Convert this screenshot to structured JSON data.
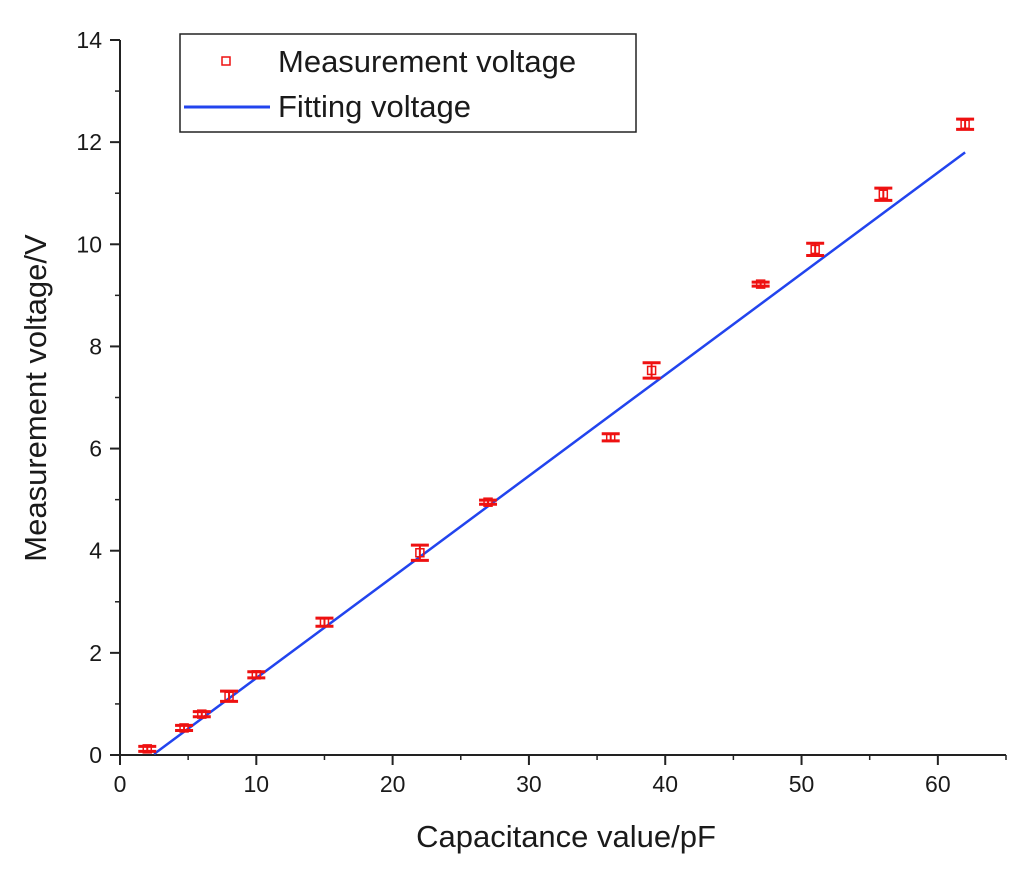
{
  "chart_data": {
    "type": "scatter",
    "title": "",
    "xlabel": "Capacitance value/pF",
    "ylabel": "Measurement voltage/V",
    "xlim": [
      0,
      65
    ],
    "ylim": [
      0,
      14
    ],
    "xticks": [
      0,
      10,
      20,
      30,
      40,
      50,
      60
    ],
    "yticks": [
      0,
      2,
      4,
      6,
      8,
      10,
      12,
      14
    ],
    "xminor_step": 5,
    "yminor_step": 1,
    "grid": false,
    "legend_position": "top-left",
    "series": [
      {
        "name": "Measurement voltage",
        "kind": "scatter-errorbar",
        "color": "#ee1111",
        "marker": "open-square",
        "points": [
          {
            "x": 2,
            "y": 0.12,
            "err": 0.05
          },
          {
            "x": 4.7,
            "y": 0.53,
            "err": 0.05
          },
          {
            "x": 6,
            "y": 0.8,
            "err": 0.05
          },
          {
            "x": 8,
            "y": 1.15,
            "err": 0.1
          },
          {
            "x": 10,
            "y": 1.57,
            "err": 0.06
          },
          {
            "x": 15,
            "y": 2.6,
            "err": 0.08
          },
          {
            "x": 22,
            "y": 3.96,
            "err": 0.15
          },
          {
            "x": 27,
            "y": 4.95,
            "err": 0.04
          },
          {
            "x": 36,
            "y": 6.22,
            "err": 0.07
          },
          {
            "x": 39,
            "y": 7.53,
            "err": 0.15
          },
          {
            "x": 47,
            "y": 9.22,
            "err": 0.04
          },
          {
            "x": 51,
            "y": 9.9,
            "err": 0.12
          },
          {
            "x": 56,
            "y": 10.98,
            "err": 0.12
          },
          {
            "x": 62,
            "y": 12.35,
            "err": 0.1
          }
        ]
      },
      {
        "name": "Fitting voltage",
        "kind": "line",
        "color": "#2244ee",
        "x": [
          2.5,
          62
        ],
        "y": [
          0.02,
          11.8
        ]
      }
    ]
  }
}
